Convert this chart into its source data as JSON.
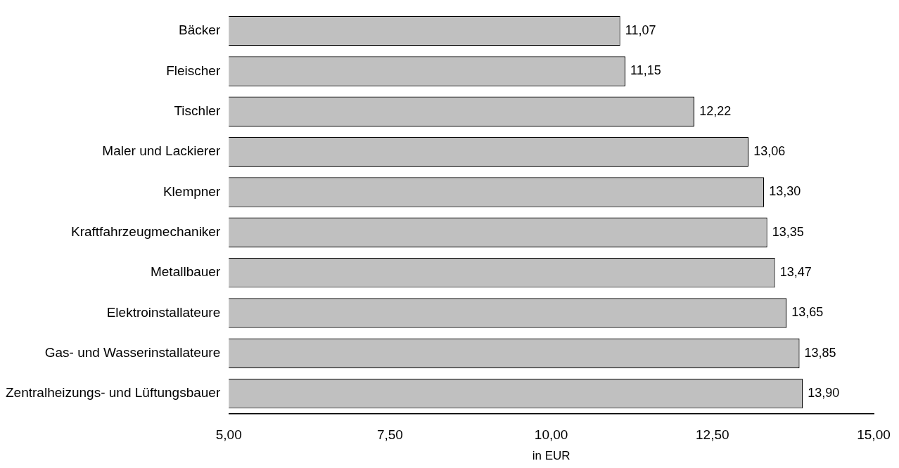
{
  "chart_data": {
    "type": "bar",
    "orientation": "horizontal",
    "xlabel": "in EUR",
    "categories": [
      "Bäcker",
      "Fleischer",
      "Tischler",
      "Maler und Lackierer",
      "Klempner",
      "Kraftfahrzeugmechaniker",
      "Metallbauer",
      "Elektroinstallateure",
      "Gas- und Wasserinstallateure",
      "Zentralheizungs- und Lüftungsbauer"
    ],
    "values": [
      11.07,
      11.15,
      12.22,
      13.06,
      13.3,
      13.35,
      13.47,
      13.65,
      13.85,
      13.9
    ],
    "value_labels": [
      "11,07",
      "11,15",
      "12,22",
      "13,06",
      "13,30",
      "13,35",
      "13,47",
      "13,65",
      "13,85",
      "13,90"
    ],
    "color": "#c0c0c0",
    "xlim": [
      5,
      15
    ],
    "xticks": [
      {
        "value": 5,
        "label": "5,00"
      },
      {
        "value": 7.5,
        "label": "7,50"
      },
      {
        "value": 10,
        "label": "10,00"
      },
      {
        "value": 12.5,
        "label": "12,50"
      },
      {
        "value": 15,
        "label": "15,00"
      }
    ],
    "grid": false,
    "legend": false
  }
}
